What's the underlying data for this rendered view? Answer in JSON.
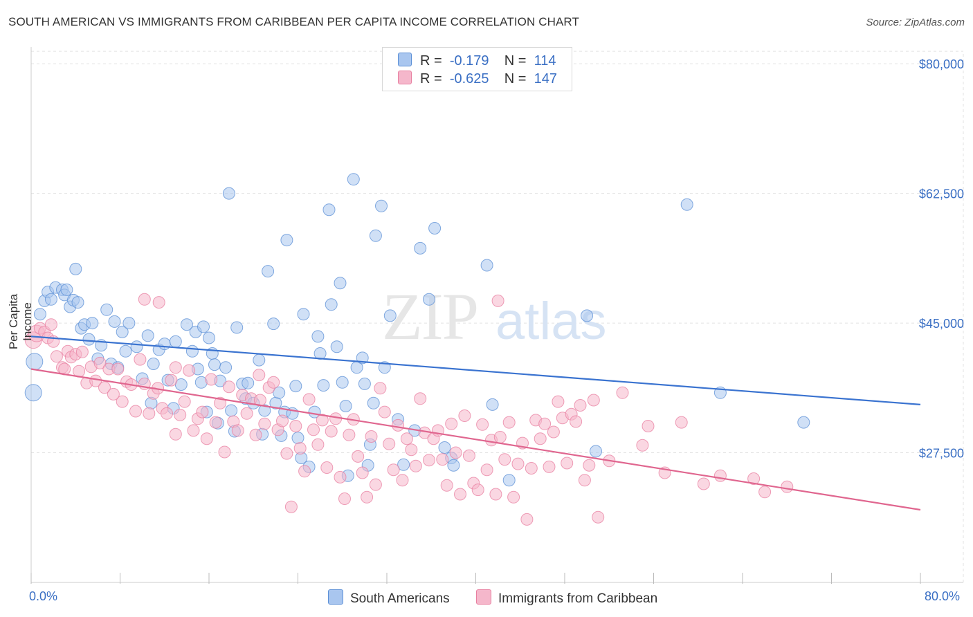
{
  "title": "SOUTH AMERICAN VS IMMIGRANTS FROM CARIBBEAN PER CAPITA INCOME CORRELATION CHART",
  "source": "Source: ZipAtlas.com",
  "watermark": {
    "zip": "ZIP",
    "atlas": "atlas"
  },
  "legend": {
    "rows": [
      {
        "r_label": "R =",
        "r_value": "-0.179",
        "n_label": "N =",
        "n_value": "114",
        "color": "#a9c6ef",
        "stroke": "#5b8fd6"
      },
      {
        "r_label": "R =",
        "r_value": "-0.625",
        "n_label": "N =",
        "n_value": "147",
        "color": "#f5b7cb",
        "stroke": "#e87fa0"
      }
    ]
  },
  "bottom_legend": [
    "South Americans",
    "Immigrants from Caribbean"
  ],
  "chart_data": {
    "type": "scatter",
    "title": "SOUTH AMERICAN VS IMMIGRANTS FROM CARIBBEAN PER CAPITA INCOME CORRELATION CHART",
    "xlabel": "",
    "ylabel": "Per Capita Income",
    "xlim": [
      0,
      80
    ],
    "ylim": [
      10000,
      83000
    ],
    "x_tick_labels": [
      "0.0%",
      "80.0%"
    ],
    "y_ticks": [
      27500,
      45000,
      62500,
      80000
    ],
    "y_tick_labels": [
      "$27,500",
      "$45,000",
      "$62,500",
      "$80,000"
    ],
    "grid": "horizontal dashed",
    "legend_position": "top-center",
    "series": [
      {
        "name": "South Americans",
        "color": "#5b8fd6",
        "fill": "#a9c6ef",
        "trend": {
          "x": [
            0,
            80
          ],
          "y": [
            43200,
            34000
          ]
        },
        "points": [
          [
            0.2,
            35600
          ],
          [
            0.3,
            39800
          ],
          [
            0.8,
            46200
          ],
          [
            1.2,
            48000
          ],
          [
            1.5,
            49200
          ],
          [
            1.8,
            48200
          ],
          [
            2.2,
            49800
          ],
          [
            2.8,
            49500
          ],
          [
            3.0,
            48800
          ],
          [
            3.2,
            49500
          ],
          [
            3.5,
            47200
          ],
          [
            3.8,
            48100
          ],
          [
            4.0,
            52300
          ],
          [
            4.2,
            47800
          ],
          [
            4.5,
            44300
          ],
          [
            4.8,
            44800
          ],
          [
            5.2,
            42800
          ],
          [
            5.5,
            45000
          ],
          [
            6.0,
            40200
          ],
          [
            6.3,
            42000
          ],
          [
            6.8,
            46800
          ],
          [
            7.2,
            39500
          ],
          [
            7.5,
            45200
          ],
          [
            7.8,
            39000
          ],
          [
            8.2,
            43800
          ],
          [
            8.5,
            41200
          ],
          [
            8.8,
            45000
          ],
          [
            9.5,
            41800
          ],
          [
            10.0,
            37500
          ],
          [
            10.5,
            43300
          ],
          [
            10.8,
            34200
          ],
          [
            11.0,
            39500
          ],
          [
            11.5,
            41400
          ],
          [
            12.0,
            42200
          ],
          [
            12.3,
            37300
          ],
          [
            12.8,
            33500
          ],
          [
            13.0,
            42500
          ],
          [
            13.5,
            36700
          ],
          [
            14.0,
            44800
          ],
          [
            14.5,
            41200
          ],
          [
            14.8,
            43800
          ],
          [
            15.0,
            38800
          ],
          [
            15.3,
            37000
          ],
          [
            15.5,
            44500
          ],
          [
            15.8,
            33000
          ],
          [
            16.0,
            43000
          ],
          [
            16.3,
            40900
          ],
          [
            16.5,
            39400
          ],
          [
            17.0,
            37200
          ],
          [
            17.5,
            39000
          ],
          [
            17.8,
            62500
          ],
          [
            18.0,
            33200
          ],
          [
            18.5,
            44400
          ],
          [
            19.0,
            36800
          ],
          [
            19.3,
            34800
          ],
          [
            19.5,
            36900
          ],
          [
            20.0,
            34200
          ],
          [
            20.5,
            40000
          ],
          [
            21.0,
            33200
          ],
          [
            21.3,
            52000
          ],
          [
            21.8,
            44900
          ],
          [
            22.0,
            34200
          ],
          [
            22.5,
            29800
          ],
          [
            22.8,
            33000
          ],
          [
            23.0,
            56200
          ],
          [
            23.5,
            32800
          ],
          [
            23.8,
            36500
          ],
          [
            24.0,
            29500
          ],
          [
            24.3,
            26800
          ],
          [
            24.5,
            46200
          ],
          [
            25.0,
            25600
          ],
          [
            25.5,
            33000
          ],
          [
            25.8,
            43200
          ],
          [
            26.0,
            40900
          ],
          [
            26.3,
            36600
          ],
          [
            26.8,
            60300
          ],
          [
            27.0,
            47500
          ],
          [
            27.5,
            41800
          ],
          [
            27.8,
            50400
          ],
          [
            28.0,
            37000
          ],
          [
            28.3,
            33800
          ],
          [
            28.5,
            24400
          ],
          [
            29.0,
            64400
          ],
          [
            29.3,
            39000
          ],
          [
            29.8,
            40300
          ],
          [
            30.0,
            36800
          ],
          [
            30.3,
            25800
          ],
          [
            30.8,
            34200
          ],
          [
            31.0,
            56800
          ],
          [
            31.5,
            60800
          ],
          [
            31.8,
            39000
          ],
          [
            32.3,
            46000
          ],
          [
            33.5,
            25900
          ],
          [
            35.0,
            55100
          ],
          [
            35.8,
            48200
          ],
          [
            36.3,
            57800
          ],
          [
            37.2,
            28200
          ],
          [
            37.8,
            26800
          ],
          [
            38.0,
            25800
          ],
          [
            41.0,
            52800
          ],
          [
            41.5,
            34000
          ],
          [
            43.0,
            23800
          ],
          [
            50.0,
            46000
          ],
          [
            50.8,
            27700
          ],
          [
            59.0,
            61000
          ],
          [
            62.0,
            35600
          ],
          [
            69.5,
            31600
          ],
          [
            22.3,
            35600
          ],
          [
            33.0,
            32000
          ],
          [
            34.5,
            30500
          ],
          [
            18.3,
            30400
          ],
          [
            16.8,
            31500
          ],
          [
            20.8,
            30000
          ],
          [
            30.5,
            28600
          ]
        ]
      },
      {
        "name": "Immigrants from Caribbean",
        "color": "#e87fa0",
        "fill": "#f5b7cb",
        "trend": {
          "x": [
            0,
            80
          ],
          "y": [
            38800,
            19800
          ]
        },
        "points": [
          [
            0.2,
            42700
          ],
          [
            0.5,
            43600
          ],
          [
            0.8,
            44300
          ],
          [
            1.2,
            43800
          ],
          [
            1.5,
            43000
          ],
          [
            1.8,
            44800
          ],
          [
            2.0,
            42500
          ],
          [
            2.3,
            40500
          ],
          [
            2.8,
            39000
          ],
          [
            3.0,
            38800
          ],
          [
            3.3,
            41200
          ],
          [
            3.6,
            40400
          ],
          [
            4.0,
            40800
          ],
          [
            4.3,
            38500
          ],
          [
            4.6,
            41100
          ],
          [
            5.0,
            36900
          ],
          [
            5.4,
            39100
          ],
          [
            5.8,
            37200
          ],
          [
            6.2,
            39600
          ],
          [
            6.6,
            36300
          ],
          [
            7.0,
            38800
          ],
          [
            7.4,
            35400
          ],
          [
            7.8,
            38800
          ],
          [
            8.2,
            34400
          ],
          [
            8.6,
            37100
          ],
          [
            9.0,
            36700
          ],
          [
            9.4,
            33100
          ],
          [
            9.8,
            40100
          ],
          [
            10.2,
            36800
          ],
          [
            10.6,
            32800
          ],
          [
            11.0,
            35500
          ],
          [
            11.4,
            36200
          ],
          [
            11.8,
            33500
          ],
          [
            12.2,
            32800
          ],
          [
            12.6,
            37300
          ],
          [
            13.0,
            30000
          ],
          [
            13.4,
            32600
          ],
          [
            13.8,
            34400
          ],
          [
            14.2,
            38600
          ],
          [
            14.6,
            30500
          ],
          [
            15.0,
            32100
          ],
          [
            15.4,
            33000
          ],
          [
            15.8,
            29400
          ],
          [
            16.2,
            37400
          ],
          [
            16.6,
            31600
          ],
          [
            17.0,
            34200
          ],
          [
            17.4,
            27600
          ],
          [
            17.8,
            36400
          ],
          [
            18.2,
            31700
          ],
          [
            18.6,
            30500
          ],
          [
            19.0,
            35300
          ],
          [
            19.4,
            32800
          ],
          [
            19.8,
            34800
          ],
          [
            20.2,
            29900
          ],
          [
            20.6,
            34600
          ],
          [
            21.0,
            31400
          ],
          [
            21.4,
            36300
          ],
          [
            21.8,
            37000
          ],
          [
            22.2,
            30600
          ],
          [
            22.6,
            31800
          ],
          [
            23.0,
            27400
          ],
          [
            23.4,
            20200
          ],
          [
            23.8,
            31100
          ],
          [
            24.2,
            28100
          ],
          [
            24.6,
            25000
          ],
          [
            25.0,
            34700
          ],
          [
            25.4,
            30600
          ],
          [
            25.8,
            28600
          ],
          [
            26.2,
            31900
          ],
          [
            26.6,
            25500
          ],
          [
            27.0,
            30400
          ],
          [
            27.4,
            32100
          ],
          [
            27.8,
            24200
          ],
          [
            28.2,
            21300
          ],
          [
            28.6,
            29900
          ],
          [
            29.0,
            32000
          ],
          [
            29.4,
            27000
          ],
          [
            29.8,
            24800
          ],
          [
            30.2,
            21500
          ],
          [
            30.6,
            29700
          ],
          [
            31.0,
            23200
          ],
          [
            31.4,
            36200
          ],
          [
            31.8,
            33000
          ],
          [
            32.2,
            28700
          ],
          [
            32.6,
            25200
          ],
          [
            33.0,
            31200
          ],
          [
            33.4,
            23800
          ],
          [
            33.8,
            29400
          ],
          [
            34.2,
            27900
          ],
          [
            34.6,
            25700
          ],
          [
            35.0,
            34800
          ],
          [
            35.4,
            30200
          ],
          [
            35.8,
            26500
          ],
          [
            36.2,
            29400
          ],
          [
            36.6,
            30500
          ],
          [
            37.0,
            26600
          ],
          [
            37.4,
            23100
          ],
          [
            37.8,
            31400
          ],
          [
            38.2,
            27500
          ],
          [
            38.6,
            21900
          ],
          [
            39.0,
            32500
          ],
          [
            39.4,
            27100
          ],
          [
            39.8,
            23400
          ],
          [
            40.2,
            22500
          ],
          [
            40.6,
            31300
          ],
          [
            41.0,
            25200
          ],
          [
            41.4,
            29200
          ],
          [
            41.8,
            21900
          ],
          [
            42.2,
            29600
          ],
          [
            42.6,
            26600
          ],
          [
            43.0,
            31600
          ],
          [
            43.4,
            21500
          ],
          [
            43.8,
            26000
          ],
          [
            44.2,
            28800
          ],
          [
            44.6,
            18500
          ],
          [
            45.0,
            25400
          ],
          [
            45.4,
            31900
          ],
          [
            45.8,
            29400
          ],
          [
            46.2,
            31400
          ],
          [
            46.6,
            25600
          ],
          [
            47.0,
            30300
          ],
          [
            47.4,
            34400
          ],
          [
            47.8,
            32200
          ],
          [
            48.2,
            26100
          ],
          [
            48.6,
            32700
          ],
          [
            49.0,
            31700
          ],
          [
            49.4,
            33900
          ],
          [
            49.8,
            23800
          ],
          [
            50.2,
            25800
          ],
          [
            50.6,
            34600
          ],
          [
            51.0,
            18800
          ],
          [
            52.0,
            26400
          ],
          [
            53.2,
            35600
          ],
          [
            55.0,
            28500
          ],
          [
            55.5,
            31100
          ],
          [
            57.0,
            24800
          ],
          [
            58.5,
            31600
          ],
          [
            60.5,
            23300
          ],
          [
            62.0,
            24400
          ],
          [
            65.0,
            24000
          ],
          [
            66.0,
            22200
          ],
          [
            68.0,
            22900
          ],
          [
            42.0,
            48000
          ],
          [
            11.5,
            47800
          ],
          [
            10.2,
            48200
          ],
          [
            13.0,
            39000
          ],
          [
            20.5,
            38000
          ]
        ]
      }
    ]
  }
}
